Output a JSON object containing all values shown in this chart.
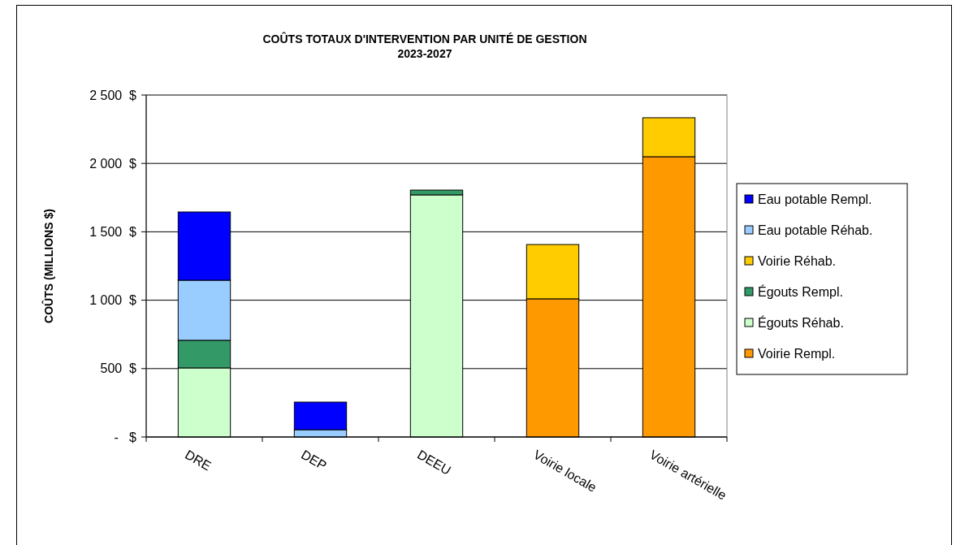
{
  "chart_data": {
    "type": "bar",
    "stacked": true,
    "title": "COÛTS TOTAUX D'INTERVENTION PAR UNITÉ DE GESTION",
    "subtitle": "2023-2027",
    "ylabel": "COÛTS (MILLIONS $)",
    "categories": [
      "DRE",
      "DEP",
      "DEEU",
      "Voirie locale",
      "Voirie artérielle"
    ],
    "series": [
      {
        "name": "Voirie Rempl.",
        "color": "#ff9900",
        "values": [
          0,
          0,
          0,
          1010,
          2049
        ]
      },
      {
        "name": "Égouts Réhab.",
        "color": "#ccffcc",
        "values": [
          505,
          0,
          1770,
          0,
          0
        ]
      },
      {
        "name": "Égouts Rempl.",
        "color": "#339966",
        "values": [
          202,
          0,
          35,
          0,
          0
        ]
      },
      {
        "name": "Voirie Réhab.",
        "color": "#ffcc00",
        "values": [
          0,
          0,
          0,
          397,
          285
        ]
      },
      {
        "name": "Eau potable Réhab.",
        "color": "#99ccff",
        "values": [
          439,
          53,
          0,
          0,
          0
        ]
      },
      {
        "name": "Eau potable Rempl.",
        "color": "#0000ff",
        "values": [
          499,
          202,
          0,
          0,
          0
        ]
      }
    ],
    "ylim": [
      0,
      2500
    ],
    "yticks": [
      {
        "value": 0,
        "label": "-   $"
      },
      {
        "value": 500,
        "label": "500  $"
      },
      {
        "value": 1000,
        "label": "1 000  $"
      },
      {
        "value": 1500,
        "label": "1 500  $"
      },
      {
        "value": 2000,
        "label": "2 000  $"
      },
      {
        "value": 2500,
        "label": "2 500  $"
      }
    ],
    "grid": "y",
    "legend": "right"
  }
}
